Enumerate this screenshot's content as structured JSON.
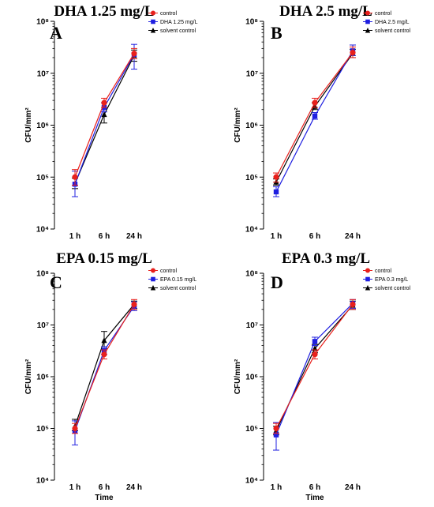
{
  "chart_data": [
    {
      "type": "line",
      "title": "DHA 1.25 mg/L",
      "panel_label": "A",
      "ylabel": "CFU/mm²",
      "xlabel": "",
      "yscale": "log",
      "ylim": [
        10000,
        100000000
      ],
      "y_tick_labels": [
        "10⁴",
        "10⁵",
        "10⁶",
        "10⁷",
        "10⁸"
      ],
      "categories": [
        "1 h",
        "6 h",
        "24 h"
      ],
      "legend_position": "top-right",
      "series": [
        {
          "name": "control",
          "color": "#e8201c",
          "marker": "circle",
          "values": [
            100000,
            2700000,
            24000000
          ],
          "error": [
            [
              70000,
              140000
            ],
            [
              2200000,
              3300000
            ],
            [
              19000000,
              30000000
            ]
          ]
        },
        {
          "name": "DHA 1.25 mg/L",
          "color": "#1f1fe0",
          "marker": "square",
          "values": [
            73000,
            2200000,
            23000000
          ],
          "error": [
            [
              42000,
              130000
            ],
            [
              1800000,
              2700000
            ],
            [
              12000000,
              36000000
            ]
          ]
        },
        {
          "name": "solvent control",
          "color": "#000000",
          "marker": "triangle",
          "values": [
            75000,
            1600000,
            22000000
          ],
          "error": [
            [
              60000,
              95000
            ],
            [
              1100000,
              2200000
            ],
            [
              17000000,
              28000000
            ]
          ]
        }
      ]
    },
    {
      "type": "line",
      "title": "DHA 2.5 mg/L",
      "panel_label": "B",
      "ylabel": "CFU/mm²",
      "xlabel": "",
      "yscale": "log",
      "ylim": [
        10000,
        100000000
      ],
      "y_tick_labels": [
        "10⁴",
        "10⁵",
        "10⁶",
        "10⁷",
        "10⁸"
      ],
      "categories": [
        "1 h",
        "6 h",
        "24 h"
      ],
      "legend_position": "top-right",
      "series": [
        {
          "name": "control",
          "color": "#e8201c",
          "marker": "circle",
          "values": [
            100000,
            2700000,
            25000000
          ],
          "error": [
            [
              80000,
              120000
            ],
            [
              2200000,
              3300000
            ],
            [
              20000000,
              32000000
            ]
          ]
        },
        {
          "name": "DHA 2.5 mg/L",
          "color": "#1f1fe0",
          "marker": "square",
          "values": [
            52000,
            1500000,
            27000000
          ],
          "error": [
            [
              42000,
              65000
            ],
            [
              1300000,
              1750000
            ],
            [
              22000000,
              35000000
            ]
          ]
        },
        {
          "name": "solvent control",
          "color": "#000000",
          "marker": "triangle",
          "values": [
            80000,
            2300000,
            24000000
          ],
          "error": [
            [
              70000,
              92000
            ],
            [
              2000000,
              2700000
            ],
            [
              20000000,
              29000000
            ]
          ]
        }
      ]
    },
    {
      "type": "line",
      "title": "EPA 0.15 mg/L",
      "panel_label": "C",
      "ylabel": "CFU/mm²",
      "xlabel": "Time",
      "yscale": "log",
      "ylim": [
        10000,
        100000000
      ],
      "y_tick_labels": [
        "10⁴",
        "10⁵",
        "10⁶",
        "10⁷",
        "10⁸"
      ],
      "categories": [
        "1 h",
        "6 h",
        "24 h"
      ],
      "legend_position": "top-right",
      "series": [
        {
          "name": "control",
          "color": "#e8201c",
          "marker": "circle",
          "values": [
            100000,
            2700000,
            25000000
          ],
          "error": [
            [
              80000,
              125000
            ],
            [
              2200000,
              3300000
            ],
            [
              20000000,
              31000000
            ]
          ]
        },
        {
          "name": "EPA 0.15 mg/L",
          "color": "#1f1fe0",
          "marker": "square",
          "values": [
            90000,
            3200000,
            23000000
          ],
          "error": [
            [
              48000,
              140000
            ],
            [
              2700000,
              3800000
            ],
            [
              19000000,
              28000000
            ]
          ]
        },
        {
          "name": "solvent control",
          "color": "#000000",
          "marker": "triangle",
          "values": [
            110000,
            5000000,
            25000000
          ],
          "error": [
            [
              90000,
              150000
            ],
            [
              3500000,
              7500000
            ],
            [
              21000000,
              29000000
            ]
          ]
        }
      ]
    },
    {
      "type": "line",
      "title": "EPA 0.3 mg/L",
      "panel_label": "D",
      "ylabel": "CFU/mm²",
      "xlabel": "Time",
      "yscale": "log",
      "ylim": [
        10000,
        100000000
      ],
      "y_tick_labels": [
        "10⁴",
        "10⁵",
        "10⁶",
        "10⁷",
        "10⁸"
      ],
      "categories": [
        "1 h",
        "6 h",
        "24 h"
      ],
      "legend_position": "top-right",
      "series": [
        {
          "name": "control",
          "color": "#e8201c",
          "marker": "circle",
          "values": [
            100000,
            2700000,
            25000000
          ],
          "error": [
            [
              80000,
              125000
            ],
            [
              2200000,
              3300000
            ],
            [
              20000000,
              31000000
            ]
          ]
        },
        {
          "name": "EPA 0.3 mg/L",
          "color": "#1f1fe0",
          "marker": "square",
          "values": [
            75000,
            4800000,
            26000000
          ],
          "error": [
            [
              38000,
              130000
            ],
            [
              4000000,
              5800000
            ],
            [
              21000000,
              31000000
            ]
          ]
        },
        {
          "name": "solvent control",
          "color": "#000000",
          "marker": "triangle",
          "values": [
            90000,
            3500000,
            24000000
          ],
          "error": [
            [
              75000,
              110000
            ],
            [
              2900000,
              4200000
            ],
            [
              20000000,
              29000000
            ]
          ]
        }
      ]
    }
  ]
}
